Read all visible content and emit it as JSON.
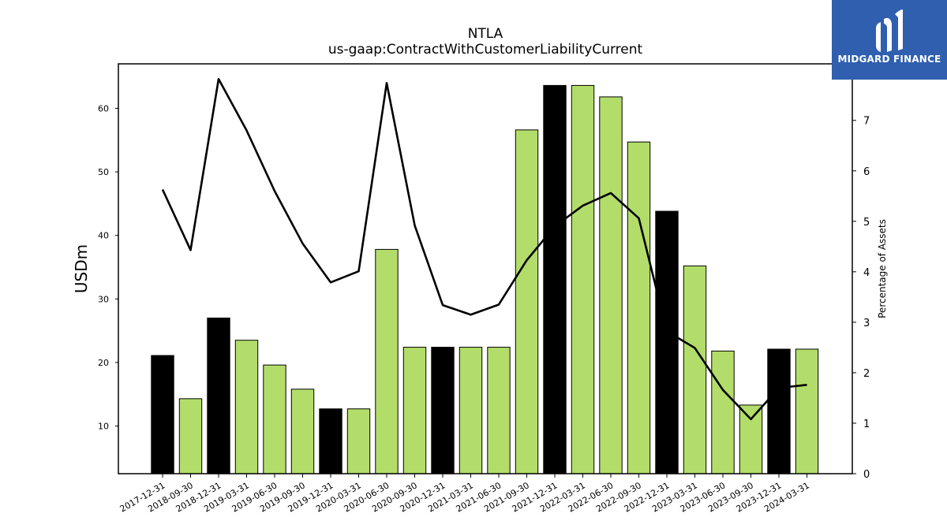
{
  "chart_data": {
    "type": "bar",
    "title": "NTLA",
    "subtitle": "us-gaap:ContractWithCustomerLiabilityCurrent",
    "ylabel": "USDm",
    "y2label": "Percentage of Assets",
    "ylim": [
      2.5,
      67
    ],
    "y2lim": [
      0,
      8.12
    ],
    "yticks": [
      10,
      20,
      30,
      40,
      50,
      60
    ],
    "y2ticks": [
      0,
      1,
      2,
      3,
      4,
      5,
      6,
      7
    ],
    "categories": [
      "2017-12-31",
      "2018-09-30",
      "2018-12-31",
      "2019-03-31",
      "2019-06-30",
      "2019-09-30",
      "2019-12-31",
      "2020-03-31",
      "2020-06-30",
      "2020-09-30",
      "2020-12-31",
      "2021-03-31",
      "2021-06-30",
      "2021-09-30",
      "2021-12-31",
      "2022-03-31",
      "2022-06-30",
      "2022-09-30",
      "2022-12-31",
      "2023-03-31",
      "2023-06-30",
      "2023-09-30",
      "2023-12-31",
      "2024-03-31"
    ],
    "series": [
      {
        "type": "bar",
        "values": [
          21.1,
          14.3,
          27.0,
          23.5,
          19.6,
          15.8,
          12.7,
          12.7,
          37.8,
          22.4,
          22.4,
          22.4,
          22.4,
          56.6,
          63.6,
          63.6,
          61.8,
          54.7,
          43.8,
          35.2,
          21.8,
          13.3,
          22.1,
          22.1
        ],
        "highlight": [
          true,
          false,
          true,
          false,
          false,
          false,
          true,
          false,
          false,
          false,
          true,
          false,
          false,
          false,
          true,
          false,
          false,
          false,
          true,
          false,
          false,
          false,
          true,
          false
        ]
      },
      {
        "type": "line",
        "axis": "right",
        "values": [
          5.63,
          4.43,
          7.82,
          6.8,
          5.6,
          4.56,
          3.79,
          4.01,
          7.74,
          4.92,
          3.34,
          3.15,
          3.35,
          4.23,
          4.9,
          5.31,
          5.56,
          5.06,
          2.82,
          2.49,
          1.66,
          1.08,
          1.7,
          1.76
        ]
      }
    ],
    "colors": {
      "bar": "#b3dd6a",
      "highlight_bar": "#000000",
      "line": "#000000"
    },
    "grid": false
  },
  "logo": {
    "text": "MIDGARD FINANCE",
    "background": "#2f5fae"
  }
}
